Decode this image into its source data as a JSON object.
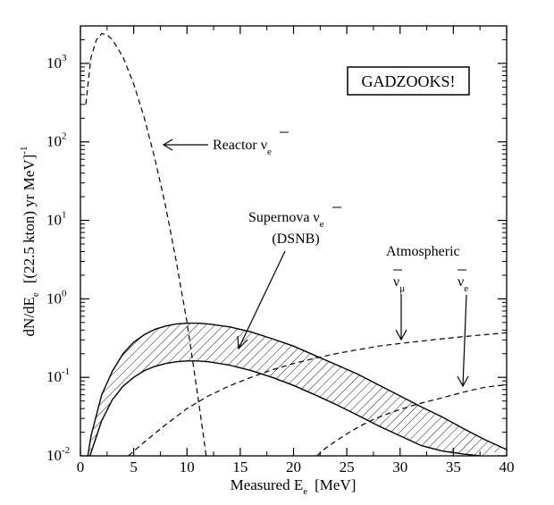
{
  "chart_data": {
    "type": "line",
    "yscale": "log",
    "xlim": [
      0,
      40
    ],
    "ylim": [
      0.01,
      3000
    ],
    "x_ticks": [
      "0",
      "5",
      "10",
      "15",
      "20",
      "25",
      "30",
      "35",
      "40"
    ],
    "y_tick_base": "10",
    "y_tick_exponents": [
      "-2",
      "-1",
      "0",
      "1",
      "2",
      "3"
    ],
    "xlabel": {
      "main": "Measured E",
      "sub": "e",
      "unit": "[MeV]"
    },
    "ylabel": {
      "main": "dN/dE",
      "sub": "e",
      "unit": "[(22.5 kton) yr MeV]",
      "exp": "-1"
    },
    "box_label": "GADZOOKS!",
    "series": [
      {
        "name": "Reactor",
        "label_main": "Reactor ν",
        "label_sub": "e",
        "style": "dashed",
        "x": [
          0.5,
          1.0,
          1.5,
          2.0,
          2.5,
          3.0,
          4.0,
          5.0,
          6.0,
          7.0,
          8.0,
          9.0,
          10.0,
          11.0,
          11.5,
          11.8
        ],
        "y": [
          300,
          1200,
          2000,
          2400,
          2300,
          2000,
          1200,
          550,
          200,
          60,
          15,
          3,
          0.5,
          0.06,
          0.02,
          0.01
        ]
      },
      {
        "name": "Supernova DSNB upper",
        "style": "solid",
        "x": [
          0.7,
          1,
          2,
          3,
          4,
          5,
          6,
          7,
          8,
          9,
          10,
          11,
          12,
          14,
          16,
          18,
          20,
          22,
          24,
          26,
          28,
          30,
          32,
          34,
          36,
          38,
          40
        ],
        "y": [
          0.01,
          0.018,
          0.06,
          0.12,
          0.2,
          0.28,
          0.35,
          0.41,
          0.45,
          0.48,
          0.49,
          0.49,
          0.48,
          0.44,
          0.38,
          0.31,
          0.25,
          0.19,
          0.145,
          0.11,
          0.08,
          0.058,
          0.042,
          0.031,
          0.022,
          0.016,
          0.012
        ]
      },
      {
        "name": "Supernova DSNB lower",
        "style": "solid",
        "x": [
          0.9,
          1,
          2,
          3,
          4,
          5,
          6,
          7,
          8,
          9,
          10,
          11,
          12,
          14,
          16,
          18,
          20,
          22,
          24,
          26,
          28,
          30,
          32,
          34,
          36,
          37.5
        ],
        "y": [
          0.01,
          0.011,
          0.028,
          0.052,
          0.077,
          0.1,
          0.122,
          0.138,
          0.15,
          0.158,
          0.162,
          0.162,
          0.158,
          0.143,
          0.122,
          0.1,
          0.079,
          0.06,
          0.045,
          0.033,
          0.024,
          0.018,
          0.0135,
          0.0115,
          0.0105,
          0.01
        ]
      },
      {
        "name": "Atmospheric nu_mu",
        "label_main": "ν",
        "label_sub": "μ",
        "style": "dashed",
        "x": [
          4.5,
          6,
          8,
          10,
          12,
          14,
          16,
          18,
          20,
          22,
          24,
          26,
          28,
          30,
          32,
          34,
          36,
          38,
          40
        ],
        "y": [
          0.01,
          0.015,
          0.025,
          0.04,
          0.058,
          0.078,
          0.1,
          0.125,
          0.15,
          0.175,
          0.2,
          0.225,
          0.25,
          0.27,
          0.29,
          0.31,
          0.33,
          0.35,
          0.37
        ]
      },
      {
        "name": "Atmospheric nu_e",
        "label_main": "ν",
        "label_sub": "e",
        "style": "dashed",
        "x": [
          22.2,
          23,
          24,
          25,
          26,
          27,
          28,
          29,
          30,
          31,
          32,
          33,
          34,
          35,
          36,
          37,
          38,
          39,
          40
        ],
        "y": [
          0.01,
          0.0125,
          0.0155,
          0.019,
          0.023,
          0.027,
          0.031,
          0.035,
          0.039,
          0.043,
          0.047,
          0.051,
          0.055,
          0.06,
          0.065,
          0.07,
          0.075,
          0.078,
          0.08
        ]
      }
    ],
    "annotations": {
      "supernova_line1": "Supernova ν",
      "supernova_sub": "e",
      "supernova_line2": "(DSNB)",
      "atmospheric": "Atmospheric"
    }
  }
}
